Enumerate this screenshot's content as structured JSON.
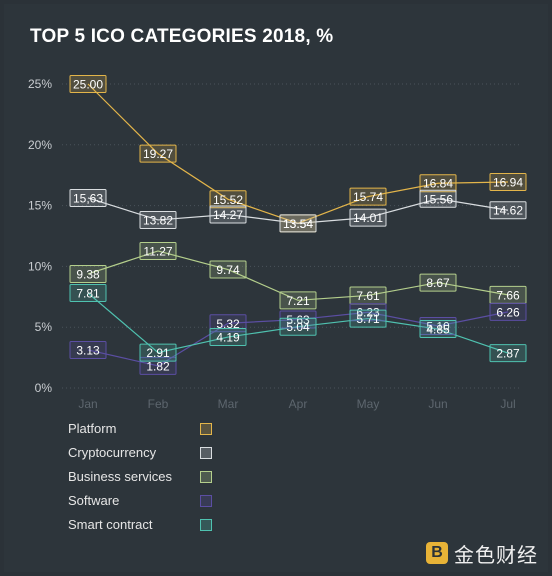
{
  "title": "TOP 5 ICO CATEGORIES 2018, %",
  "brand": {
    "text": "金色财经",
    "mark": "B"
  },
  "chart_data": {
    "type": "line",
    "categories": [
      "Jan",
      "Feb",
      "Mar",
      "Apr",
      "May",
      "Jun",
      "Jul"
    ],
    "ylim": [
      0,
      25
    ],
    "yticks": [
      "0%",
      "5%",
      "10%",
      "15%",
      "20%",
      "25%"
    ],
    "grid": true,
    "legend_placement": "bottom-left",
    "series": [
      {
        "name": "Platform",
        "color": "#e3b54a",
        "values": [
          25.0,
          19.27,
          15.52,
          13.54,
          15.74,
          16.84,
          16.94
        ],
        "labels": [
          "25.00",
          "19.27",
          "15.52",
          "13.54",
          "15.74",
          "16.84",
          "16.94"
        ]
      },
      {
        "name": "Cryptocurrency",
        "color": "#d9dde0",
        "values": [
          15.63,
          13.82,
          14.27,
          13.54,
          14.01,
          15.56,
          14.62
        ],
        "labels": [
          "15,63",
          "13.82",
          "14.27",
          "13.54",
          "14.01",
          "15.56",
          "14.62"
        ]
      },
      {
        "name": "Business services",
        "color": "#b4cf8c",
        "values": [
          9.38,
          11.27,
          9.74,
          7.21,
          7.61,
          8.67,
          7.66
        ],
        "labels": [
          "9.38",
          "11.27",
          "9.74",
          "7.21",
          "7.61",
          "8.67",
          "7.66"
        ]
      },
      {
        "name": "Software",
        "color": "#5b4ea3",
        "values": [
          3.13,
          1.82,
          5.32,
          5.63,
          6.23,
          5.1,
          6.26
        ],
        "labels": [
          "3.13",
          "1.82",
          "5.32",
          "5.63",
          "6.23",
          "5.10",
          "6.26"
        ]
      },
      {
        "name": "Smart contract",
        "color": "#4fc2b0",
        "values": [
          7.81,
          2.91,
          4.19,
          5.04,
          5.71,
          4.85,
          2.87
        ],
        "labels": [
          "7.81",
          "2.91",
          "4.19",
          "5.04",
          "5.71",
          "4.85",
          "2.87"
        ]
      }
    ]
  }
}
